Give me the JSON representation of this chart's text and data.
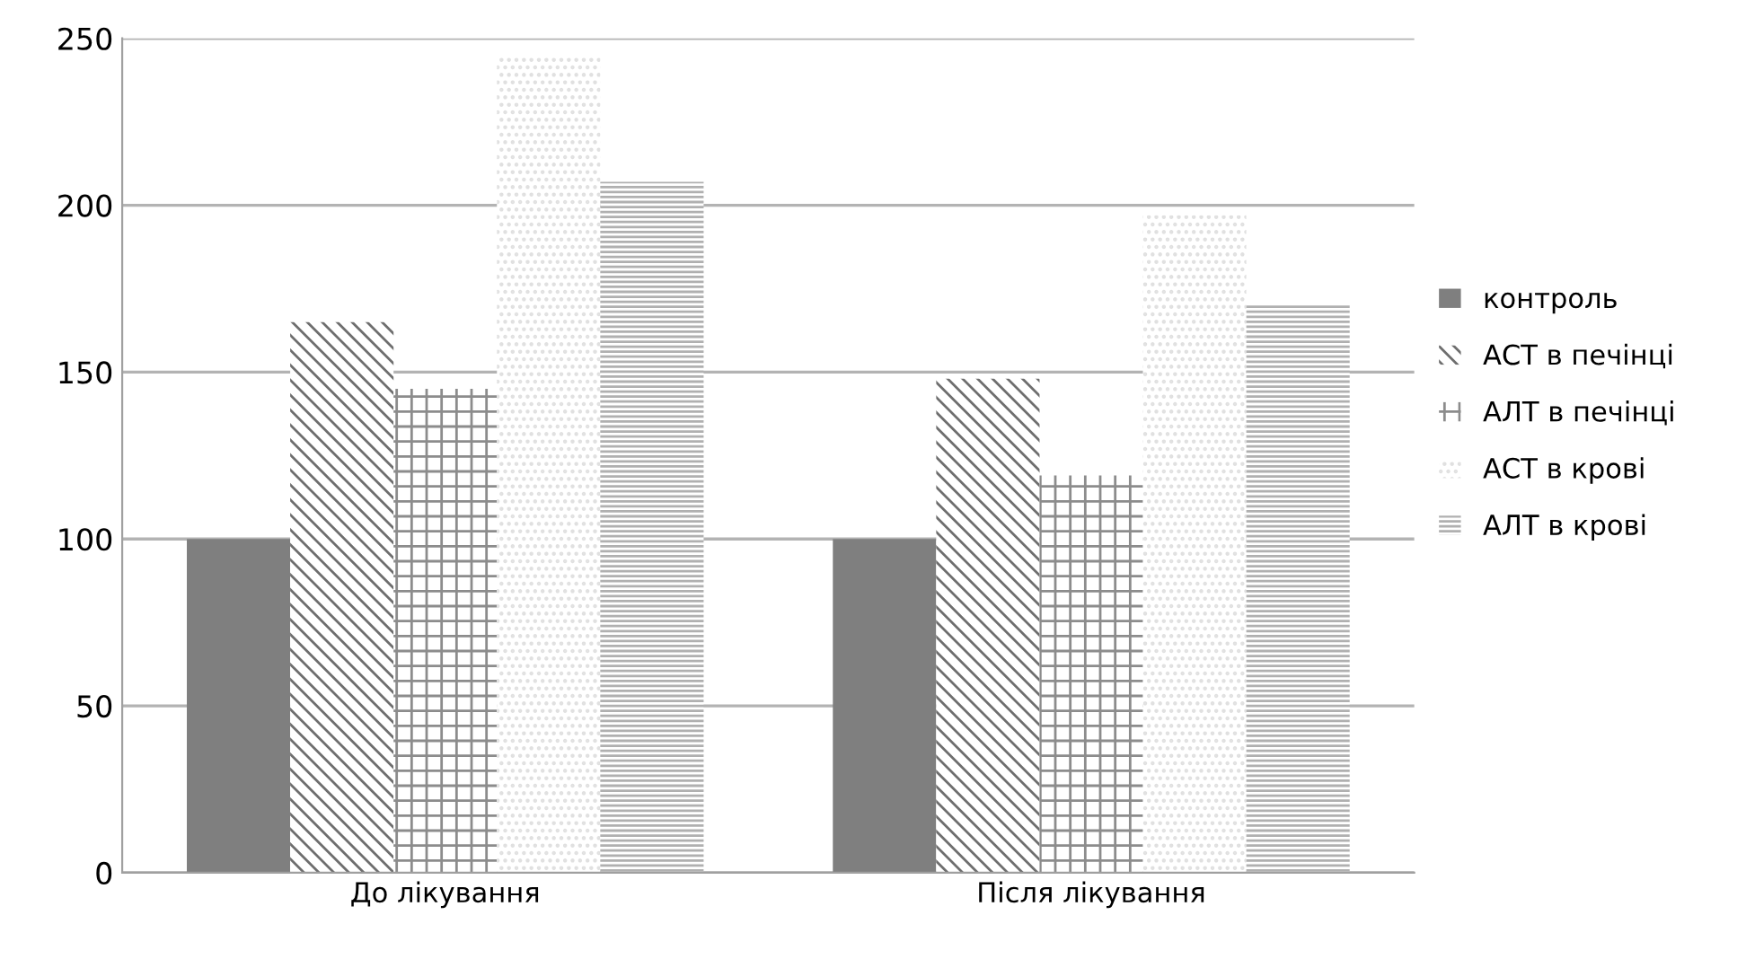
{
  "chart_data": {
    "type": "bar",
    "categories": [
      "До лікування",
      "Після лікування"
    ],
    "series": [
      {
        "name": "контроль",
        "color": "#7f7f7f",
        "values": [
          100,
          100
        ]
      },
      {
        "name": "АСТ в печінці",
        "color": "#6e6e6e",
        "values": [
          165,
          148
        ]
      },
      {
        "name": "АЛТ в печінці",
        "color": "#8c8c8c",
        "values": [
          145,
          119
        ]
      },
      {
        "name": "АСТ в крові",
        "color": "#e0e0e0",
        "values": [
          245,
          197
        ]
      },
      {
        "name": "АЛТ в крові",
        "color": "#b0b0b0",
        "values": [
          207,
          170
        ]
      }
    ],
    "ylim": [
      0,
      250
    ],
    "yticks": [
      0,
      50,
      100,
      150,
      200,
      250
    ],
    "grid": "y",
    "legend": "right"
  }
}
